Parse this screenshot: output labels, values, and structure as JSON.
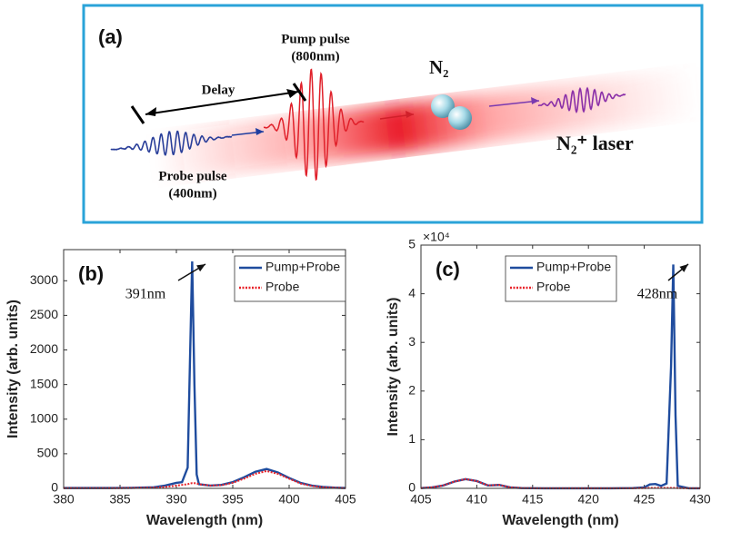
{
  "diagram": {
    "label": "(a)",
    "pump": [
      "Pump pulse",
      "(800nm)"
    ],
    "delay": "Delay",
    "molecule": "N₂",
    "probe": [
      "Probe pulse",
      "(400nm)"
    ],
    "laser": "N₂⁺ laser"
  },
  "chart_data": [
    {
      "type": "line",
      "panel": "(b)",
      "xlabel": "Wavelength (nm)",
      "ylabel": "Intensity (arb. units)",
      "xlim": [
        380,
        405
      ],
      "xticks": [
        380,
        385,
        390,
        395,
        400,
        405
      ],
      "ylim": [
        0,
        3450
      ],
      "yticks": [
        0,
        500,
        1000,
        1500,
        2000,
        2500,
        3000
      ],
      "legend": "upper right",
      "annotation": "391nm",
      "x": [
        380,
        382,
        384,
        386,
        388,
        389,
        390,
        390.5,
        391,
        391.2,
        391.4,
        391.6,
        391.8,
        392,
        393,
        394,
        395,
        396,
        397,
        398,
        399,
        400,
        401,
        402,
        403,
        404,
        405
      ],
      "series": [
        {
          "name": "Pump+Probe",
          "color": "#1f4c9e",
          "style": "solid",
          "values": [
            5,
            5,
            5,
            8,
            15,
            40,
            80,
            90,
            300,
            1800,
            3280,
            1500,
            200,
            60,
            40,
            50,
            90,
            160,
            240,
            280,
            230,
            150,
            80,
            40,
            20,
            10,
            5
          ]
        },
        {
          "name": "Probe",
          "color": "#e8232a",
          "style": "dotted",
          "values": [
            3,
            3,
            3,
            5,
            10,
            20,
            40,
            50,
            60,
            70,
            75,
            75,
            70,
            60,
            40,
            45,
            80,
            140,
            210,
            250,
            210,
            140,
            70,
            35,
            15,
            8,
            3
          ]
        }
      ]
    },
    {
      "type": "line",
      "panel": "(c)",
      "xlabel": "Wavelength (nm)",
      "ylabel": "Intensity (arb. units)",
      "y_multiplier": "×10⁴",
      "xlim": [
        405,
        430
      ],
      "xticks": [
        405,
        410,
        415,
        420,
        425,
        430
      ],
      "ylim": [
        0,
        5
      ],
      "yticks": [
        0,
        1,
        2,
        3,
        4,
        5
      ],
      "legend": "upper right",
      "annotation": "428nm",
      "x": [
        405,
        406,
        407,
        408,
        409,
        410,
        411,
        412,
        413,
        414,
        416,
        418,
        420,
        422,
        424,
        425,
        425.5,
        426,
        426.5,
        427,
        427.4,
        427.6,
        427.8,
        428,
        429,
        430
      ],
      "series": [
        {
          "name": "Pump+Probe",
          "color": "#1f4c9e",
          "style": "solid",
          "values": [
            0.005,
            0.02,
            0.06,
            0.14,
            0.19,
            0.15,
            0.06,
            0.07,
            0.02,
            0.005,
            0.002,
            0.002,
            0.002,
            0.002,
            0.005,
            0.02,
            0.08,
            0.09,
            0.05,
            0.1,
            2.5,
            4.6,
            1.5,
            0.05,
            0.002,
            0.002
          ]
        },
        {
          "name": "Probe",
          "color": "#e8232a",
          "style": "dotted",
          "values": [
            0.005,
            0.02,
            0.06,
            0.14,
            0.19,
            0.15,
            0.06,
            0.07,
            0.02,
            0.005,
            0.002,
            0.002,
            0.002,
            0.002,
            0.003,
            0.005,
            0.01,
            0.01,
            0.01,
            0.01,
            0.01,
            0.01,
            0.01,
            0.005,
            0.002,
            0.002
          ]
        }
      ]
    }
  ]
}
